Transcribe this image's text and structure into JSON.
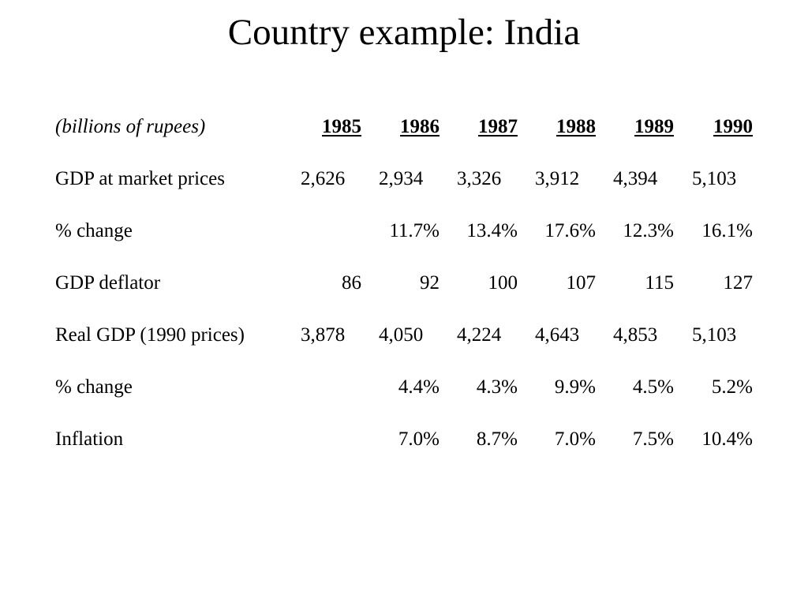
{
  "slide": {
    "title": "Country example: India"
  },
  "table": {
    "unit_label": "(billions of rupees)",
    "years": [
      "1985",
      "1986",
      "1987",
      "1988",
      "1989",
      "1990"
    ],
    "rows": [
      {
        "label": "GDP at market prices",
        "values": [
          "2,626",
          "2,934",
          "3,326",
          "3,912",
          "4,394",
          "5,103"
        ]
      },
      {
        "label": "% change",
        "values": [
          "",
          "11.7%",
          "13.4%",
          "17.6%",
          "12.3%",
          "16.1%"
        ]
      },
      {
        "label": "GDP deflator",
        "values": [
          "86",
          "92",
          "100",
          "107",
          "115",
          "127"
        ]
      },
      {
        "label": "Real GDP (1990 prices)",
        "values": [
          "3,878",
          "4,050",
          "4,224",
          "4,643",
          "4,853",
          "5,103"
        ]
      },
      {
        "label": "% change",
        "values": [
          "",
          "4.4%",
          "4.3%",
          "9.9%",
          "4.5%",
          "5.2%"
        ]
      },
      {
        "label": "Inflation",
        "values": [
          "",
          "7.0%",
          "8.7%",
          "7.0%",
          "7.5%",
          "10.4%"
        ]
      }
    ]
  }
}
